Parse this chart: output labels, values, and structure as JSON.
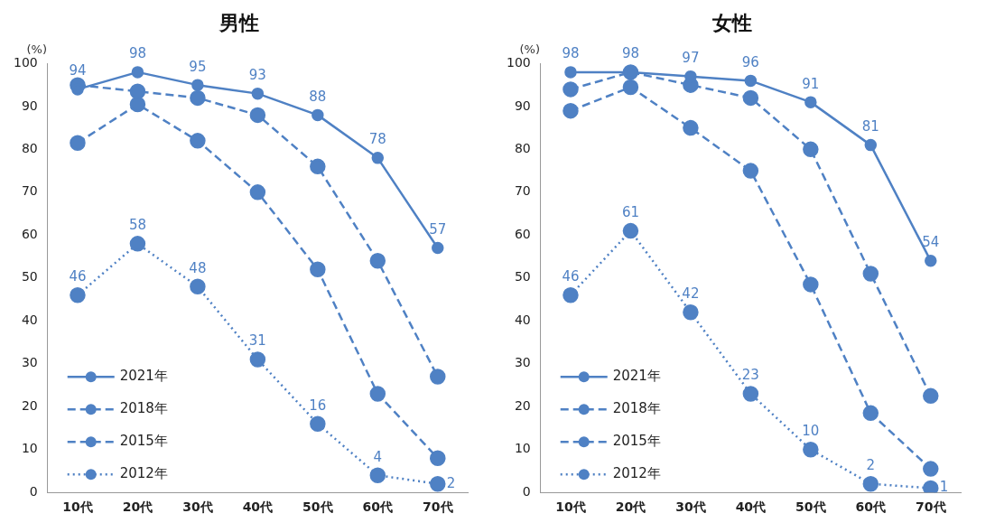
{
  "chart_data": [
    {
      "type": "line",
      "title": "男性",
      "ylabel": "(%)",
      "categories": [
        "10代",
        "20代",
        "30代",
        "40代",
        "50代",
        "60代",
        "70代"
      ],
      "ylim": [
        0,
        100
      ],
      "yticks": [
        0,
        10,
        20,
        30,
        40,
        50,
        60,
        70,
        80,
        90,
        100
      ],
      "grid": false,
      "legend": "bottom left",
      "marker": "circle",
      "series": [
        {
          "name": "2021年",
          "color": "#4f81c4",
          "line_style": "solid",
          "values": [
            94,
            98,
            95,
            93,
            88,
            78,
            57
          ],
          "value_labels": [
            "94",
            "98",
            "95",
            "93",
            "88",
            "78",
            "57"
          ]
        },
        {
          "name": "2018年",
          "color": "#4f81c4",
          "line_style": "dashed",
          "values": [
            95,
            93.5,
            92,
            88,
            76,
            54,
            27
          ]
        },
        {
          "name": "2015年",
          "color": "#4f81c4",
          "line_style": "dashed",
          "values": [
            81.5,
            90.5,
            82,
            70,
            52,
            23,
            8
          ]
        },
        {
          "name": "2012年",
          "color": "#4f81c4",
          "line_style": "dotted",
          "values": [
            46,
            58,
            48,
            31,
            16,
            4,
            2
          ],
          "value_labels": [
            "46",
            "58",
            "48",
            "31",
            "16",
            "4",
            "2"
          ]
        }
      ]
    },
    {
      "type": "line",
      "title": "女性",
      "ylabel": "(%)",
      "categories": [
        "10代",
        "20代",
        "30代",
        "40代",
        "50代",
        "60代",
        "70代"
      ],
      "ylim": [
        0,
        100
      ],
      "yticks": [
        0,
        10,
        20,
        30,
        40,
        50,
        60,
        70,
        80,
        90,
        100
      ],
      "grid": false,
      "legend": "bottom left",
      "marker": "circle",
      "series": [
        {
          "name": "2021年",
          "color": "#4f81c4",
          "line_style": "solid",
          "values": [
            98,
            98,
            97,
            96,
            91,
            81,
            54
          ],
          "value_labels": [
            "98",
            "98",
            "97",
            "96",
            "91",
            "81",
            "54"
          ]
        },
        {
          "name": "2018年",
          "color": "#4f81c4",
          "line_style": "dashed",
          "values": [
            94,
            98,
            95,
            92,
            80,
            51,
            22.5
          ]
        },
        {
          "name": "2015年",
          "color": "#4f81c4",
          "line_style": "dashed",
          "values": [
            89,
            94.5,
            85,
            75,
            48.5,
            18.5,
            5.5
          ]
        },
        {
          "name": "2012年",
          "color": "#4f81c4",
          "line_style": "dotted",
          "values": [
            46,
            61,
            42,
            23,
            10,
            2,
            1
          ],
          "value_labels": [
            "46",
            "61",
            "42",
            "23",
            "10",
            "2",
            "1"
          ]
        }
      ]
    }
  ]
}
